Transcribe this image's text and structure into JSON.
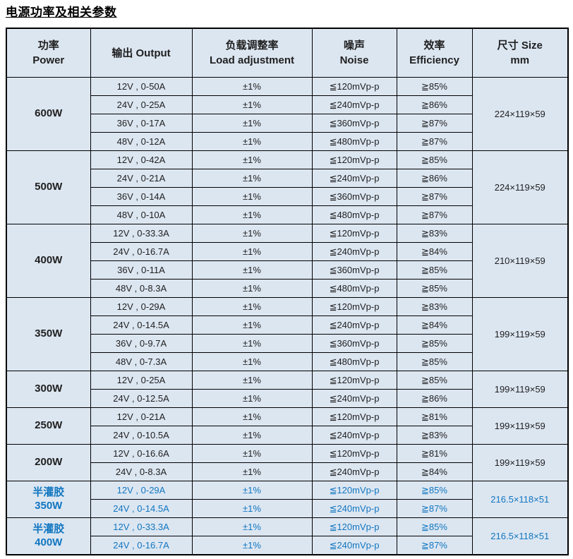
{
  "title": "电源功率及相关参数",
  "colors": {
    "cell_background": "#dce6f1",
    "border": "#000000",
    "text": "#1f1f1f",
    "accent_blue": "#1176c0"
  },
  "header": {
    "columns": [
      {
        "line1": "功率",
        "line2": "Power"
      },
      {
        "line1": "输出  Output",
        "line2": ""
      },
      {
        "line1": "负载调整率",
        "line2": "Load adjustment"
      },
      {
        "line1": "噪声",
        "line2": "Noise"
      },
      {
        "line1": "效率",
        "line2": "Efficiency"
      },
      {
        "line1": "尺寸 Size",
        "line2": "mm"
      }
    ]
  },
  "table": {
    "groups": [
      {
        "power_lines": [
          "600W"
        ],
        "accent": false,
        "size": "224×119×59",
        "rows": [
          {
            "output": "12V , 0-50A",
            "load": "±1%",
            "noise": "≦120mVp-p",
            "efficiency": "≧85%"
          },
          {
            "output": "24V , 0-25A",
            "load": "±1%",
            "noise": "≦240mVp-p",
            "efficiency": "≧86%"
          },
          {
            "output": "36V , 0-17A",
            "load": "±1%",
            "noise": "≦360mVp-p",
            "efficiency": "≧87%"
          },
          {
            "output": "48V , 0-12A",
            "load": "±1%",
            "noise": "≦480mVp-p",
            "efficiency": "≧87%"
          }
        ]
      },
      {
        "power_lines": [
          "500W"
        ],
        "accent": false,
        "size": "224×119×59",
        "rows": [
          {
            "output": "12V , 0-42A",
            "load": "±1%",
            "noise": "≦120mVp-p",
            "efficiency": "≧85%"
          },
          {
            "output": "24V , 0-21A",
            "load": "±1%",
            "noise": "≦240mVp-p",
            "efficiency": "≧86%"
          },
          {
            "output": "36V , 0-14A",
            "load": "±1%",
            "noise": "≦360mVp-p",
            "efficiency": "≧87%"
          },
          {
            "output": "48V , 0-10A",
            "load": "±1%",
            "noise": "≦480mVp-p",
            "efficiency": "≧87%"
          }
        ]
      },
      {
        "power_lines": [
          "400W"
        ],
        "accent": false,
        "size": "210×119×59",
        "rows": [
          {
            "output": "12V , 0-33.3A",
            "load": "±1%",
            "noise": "≦120mVp-p",
            "efficiency": "≧83%"
          },
          {
            "output": "24V , 0-16.7A",
            "load": "±1%",
            "noise": "≦240mVp-p",
            "efficiency": "≧84%"
          },
          {
            "output": "36V , 0-11A",
            "load": "±1%",
            "noise": "≦360mVp-p",
            "efficiency": "≧85%"
          },
          {
            "output": "48V , 0-8.3A",
            "load": "±1%",
            "noise": "≦480mVp-p",
            "efficiency": "≧85%"
          }
        ]
      },
      {
        "power_lines": [
          "350W"
        ],
        "accent": false,
        "size": "199×119×59",
        "rows": [
          {
            "output": "12V , 0-29A",
            "load": "±1%",
            "noise": "≦120mVp-p",
            "efficiency": "≧83%"
          },
          {
            "output": "24V , 0-14.5A",
            "load": "±1%",
            "noise": "≦240mVp-p",
            "efficiency": "≧84%"
          },
          {
            "output": "36V , 0-9.7A",
            "load": "±1%",
            "noise": "≦360mVp-p",
            "efficiency": "≧85%"
          },
          {
            "output": "48V , 0-7.3A",
            "load": "±1%",
            "noise": "≦480mVp-p",
            "efficiency": "≧85%"
          }
        ]
      },
      {
        "power_lines": [
          "300W"
        ],
        "accent": false,
        "size": "199×119×59",
        "rows": [
          {
            "output": "12V , 0-25A",
            "load": "±1%",
            "noise": "≦120mVp-p",
            "efficiency": "≧85%"
          },
          {
            "output": "24V , 0-12.5A",
            "load": "±1%",
            "noise": "≦240mVp-p",
            "efficiency": "≧86%"
          }
        ]
      },
      {
        "power_lines": [
          "250W"
        ],
        "accent": false,
        "size": "199×119×59",
        "rows": [
          {
            "output": "12V , 0-21A",
            "load": "±1%",
            "noise": "≦120mVp-p",
            "efficiency": "≧81%"
          },
          {
            "output": "24V , 0-10.5A",
            "load": "±1%",
            "noise": "≦240mVp-p",
            "efficiency": "≧83%"
          }
        ]
      },
      {
        "power_lines": [
          "200W"
        ],
        "accent": false,
        "size": "199×119×59",
        "rows": [
          {
            "output": "12V , 0-16.6A",
            "load": "±1%",
            "noise": "≦120mVp-p",
            "efficiency": "≧81%"
          },
          {
            "output": "24V , 0-8.3A",
            "load": "±1%",
            "noise": "≦240mVp-p",
            "efficiency": "≧84%"
          }
        ]
      },
      {
        "power_lines": [
          "半灌胶",
          "350W"
        ],
        "accent": true,
        "size": "216.5×118×51",
        "rows": [
          {
            "output": "12V , 0-29A",
            "load": "±1%",
            "noise": "≦120mVp-p",
            "efficiency": "≧85%"
          },
          {
            "output": "24V , 0-14.5A",
            "load": "±1%",
            "noise": "≦240mVp-p",
            "efficiency": "≧87%"
          }
        ]
      },
      {
        "power_lines": [
          "半灌胶",
          "400W"
        ],
        "accent": true,
        "size": "216.5×118×51",
        "rows": [
          {
            "output": "12V , 0-33.3A",
            "load": "±1%",
            "noise": "≦120mVp-p",
            "efficiency": "≧85%"
          },
          {
            "output": "24V , 0-16.7A",
            "load": "±1%",
            "noise": "≦240mVp-p",
            "efficiency": "≧87%"
          }
        ]
      }
    ]
  }
}
